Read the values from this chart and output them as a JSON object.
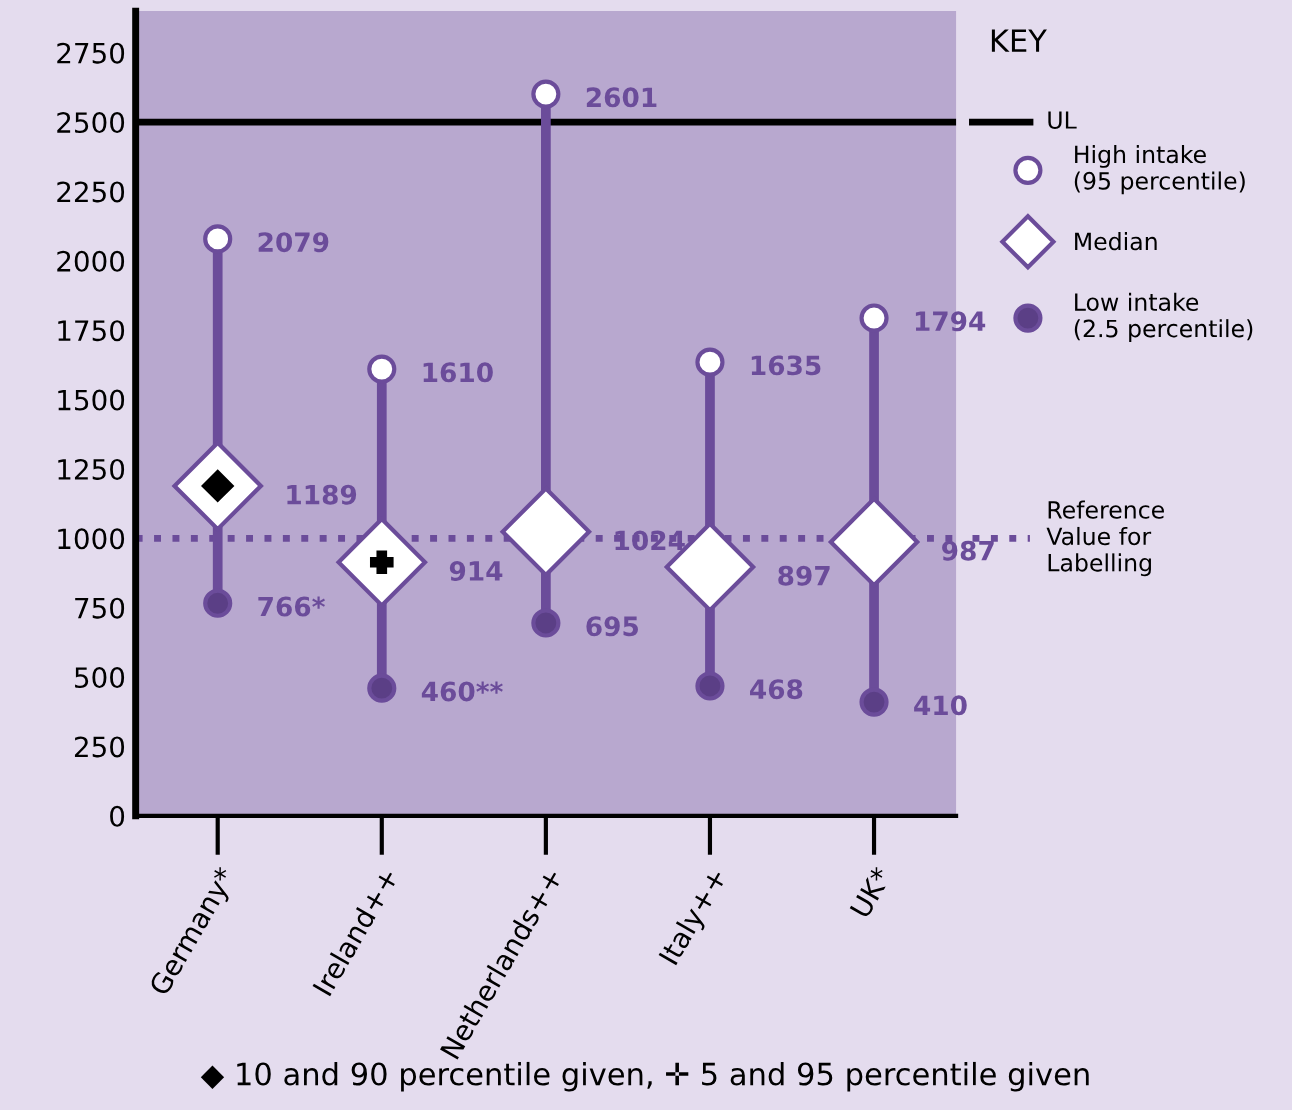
{
  "chart_data": {
    "type": "scatter",
    "categories": [
      "Germany*",
      "Ireland++",
      "Netherlands++",
      "Italy++",
      "UK*"
    ],
    "series": [
      {
        "name": "High intake\n(95 percentile)",
        "marker": "circle",
        "color": "#ffffff",
        "values": [
          2079,
          1610,
          2601,
          1635,
          1794
        ],
        "value_labels": [
          "2079",
          "1610",
          "2601",
          "1635",
          "1794"
        ]
      },
      {
        "name": "Median",
        "marker": "diamond",
        "color": "#ffffff",
        "values": [
          1189,
          914,
          1024,
          897,
          987
        ],
        "value_labels": [
          "1189",
          "914",
          "1024",
          "897",
          "987"
        ]
      },
      {
        "name": "Low intake\n(2.5 percentile)",
        "marker": "circle",
        "color": "#5b3f86",
        "values": [
          766,
          460,
          695,
          468,
          410
        ],
        "value_labels": [
          "766*",
          "460**",
          "695",
          "468",
          "410"
        ]
      },
      {
        "marker": "diamond",
        "color": "#000000",
        "values": [
          1189,
          null,
          null,
          null,
          null
        ]
      },
      {
        "marker": "cross",
        "color": "#000000",
        "values": [
          null,
          914,
          null,
          null,
          null
        ]
      }
    ],
    "ylim": [
      0,
      2900
    ],
    "yticks": [
      0,
      250,
      500,
      750,
      1000,
      1250,
      1500,
      1750,
      2000,
      2250,
      2500,
      2750
    ],
    "ref_lines": [
      {
        "axis": "y",
        "value": 2500,
        "label": "UL",
        "color": "#000000",
        "line_style": "solid"
      },
      {
        "axis": "y",
        "value": 1000,
        "label": "Reference\nValue for\nLabelling",
        "color": "#6b4c9a",
        "line_style": "dotted"
      }
    ],
    "legend": "right",
    "legend_title": "KEY",
    "grid": false,
    "annotations": [
      "◆ 10 and 90 percentile given, ✛ 5 and 95 percentile given"
    ]
  }
}
